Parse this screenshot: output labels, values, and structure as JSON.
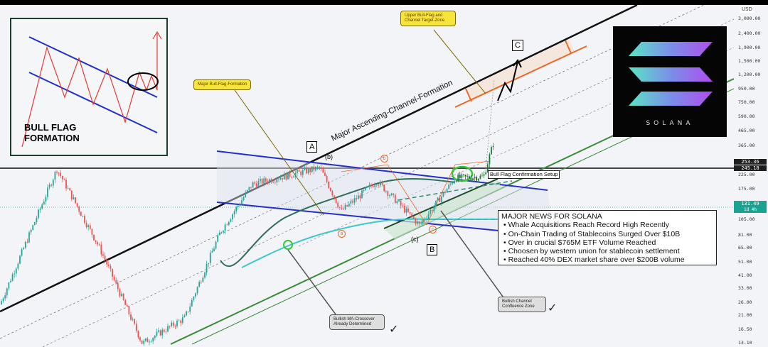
{
  "chart_data": {
    "type": "candlestick",
    "title": "",
    "currency": "USD",
    "yscale": "log",
    "ylim": [
      13.1,
      3000
    ],
    "grid": false,
    "y_ticks": [
      "3,000.00",
      "2,400.00",
      "1,900.00",
      "1,500.00",
      "1,200.00",
      "950.00",
      "750.00",
      "590.00",
      "465.00",
      "365.00",
      "225.00",
      "175.00",
      "105.00",
      "81.00",
      "65.00",
      "51.00",
      "41.00",
      "33.00",
      "26.00",
      "21.00",
      "16.50",
      "13.10"
    ],
    "price_path_approx": [
      25,
      245,
      65,
      13,
      20,
      85,
      190,
      250,
      120,
      200,
      95,
      210,
      215,
      400
    ],
    "price_labels": [
      {
        "value": "253.36",
        "color": "#1e1e1e"
      },
      {
        "value": "245.18",
        "color": "#1e1e1e"
      },
      {
        "value": "131.49",
        "sub": "1d 4h",
        "color": "#1aa391"
      }
    ]
  },
  "annotations": {
    "channel_label": "Major Ascending-Channel-Formation",
    "bull_flag_callout": "Major Bull-Flag-Formation",
    "target_callout": "Upper Bull-Flag and Channel Target-Zone",
    "ma_callout": "Bullish MA-Crossover Already Determined",
    "confluence_callout": "Bullish Channel Confluence Zone",
    "confirmation_label": "Bull Flag Confirmation Setup",
    "wave_labels": {
      "A": "A",
      "B": "B",
      "C": "C",
      "b_paren": "(b)",
      "c_paren": "(c)",
      "a": "a",
      "b": "b",
      "c": "c"
    }
  },
  "news": {
    "title": "MAJOR NEWS FOR SOLANA",
    "items": [
      "Whale Acquisitions Reach Record High Recently",
      "On-Chain Trading of Stablecoins Surged Over $10B",
      "Over in crucial $765M ETF Volume Reached",
      "Choosen by western union for stablecoin settlement",
      "Reached 40% DEX market share over $200B volume"
    ]
  },
  "inset": {
    "title_line1": "BULL FLAG",
    "title_line2": "FORMATION"
  },
  "logo": {
    "text": "SOLANA"
  },
  "colors": {
    "up": "#26a69a",
    "down": "#ef5350",
    "channel": "#000000",
    "flag": "#2330c8",
    "support": "#3a8a3a",
    "target": "#e8692a",
    "ma_fast": "#3ec9c9",
    "ma_slow": "#2f6e5a"
  }
}
